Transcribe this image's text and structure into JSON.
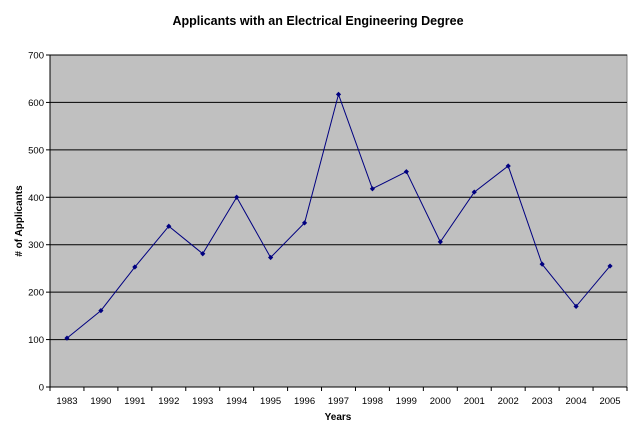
{
  "chart_data": {
    "type": "line",
    "title": "Applicants with an Electrical Engineering Degree",
    "xlabel": "Years",
    "ylabel": "# of Applicants",
    "categories": [
      "1983",
      "1990",
      "1991",
      "1992",
      "1993",
      "1994",
      "1995",
      "1996",
      "1997",
      "1998",
      "1999",
      "2000",
      "2001",
      "2002",
      "2003",
      "2004",
      "2005"
    ],
    "series": [
      {
        "values": [
          103,
          161,
          253,
          339,
          281,
          400,
          273,
          346,
          617,
          418,
          454,
          306,
          411,
          466,
          259,
          170,
          255
        ]
      }
    ],
    "ylim": [
      0,
      700
    ],
    "yticks": [
      0,
      100,
      200,
      300,
      400,
      500,
      600,
      700
    ],
    "grid": true,
    "legend": "none",
    "colors": {
      "plot_background": "#c0c0c0",
      "line": "#000080",
      "gridline": "#000000"
    }
  }
}
